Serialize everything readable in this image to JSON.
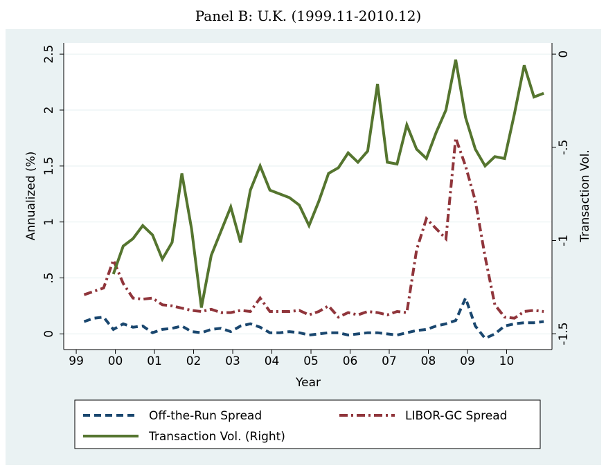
{
  "chart_data": {
    "type": "line",
    "title": "Panel B: U.K. (1999.11-2010.12)",
    "xlabel": "Year",
    "ylabel": "Annualized (%)",
    "y2label": "Transaction Vol.",
    "xlim": [
      1998.68,
      2011.16
    ],
    "xticks": [
      {
        "value": 1999,
        "label": "99"
      },
      {
        "value": 2000,
        "label": "00"
      },
      {
        "value": 2001,
        "label": "01"
      },
      {
        "value": 2002,
        "label": "02"
      },
      {
        "value": 2003,
        "label": "03"
      },
      {
        "value": 2004,
        "label": "04"
      },
      {
        "value": 2005,
        "label": "05"
      },
      {
        "value": 2006,
        "label": "06"
      },
      {
        "value": 2007,
        "label": "07"
      },
      {
        "value": 2008,
        "label": "08"
      },
      {
        "value": 2009,
        "label": "09"
      },
      {
        "value": 2010,
        "label": "10"
      }
    ],
    "ylim": [
      -0.14,
      2.6
    ],
    "yticks": [
      0,
      {
        "value": 0.5,
        "label": ".5"
      },
      1,
      1.5,
      2,
      2.5
    ],
    "y2lim": [
      -1.585,
      0.06
    ],
    "y2ticks": [
      -1.5,
      -1,
      {
        "value": -0.5,
        "label": "-.5"
      },
      0
    ],
    "grid": true,
    "x": [
      1999.2,
      1999.45,
      1999.7,
      1999.95,
      2000.2,
      2000.45,
      2000.7,
      2000.95,
      2001.2,
      2001.45,
      2001.7,
      2001.95,
      2002.2,
      2002.45,
      2002.7,
      2002.95,
      2003.2,
      2003.45,
      2003.7,
      2003.95,
      2004.2,
      2004.45,
      2004.7,
      2004.95,
      2005.2,
      2005.45,
      2005.7,
      2005.95,
      2006.2,
      2006.45,
      2006.7,
      2006.95,
      2007.2,
      2007.45,
      2007.7,
      2007.95,
      2008.2,
      2008.45,
      2008.7,
      2008.95,
      2009.2,
      2009.45,
      2009.7,
      2009.95,
      2010.2,
      2010.45,
      2010.7,
      2010.95
    ],
    "series": [
      {
        "name": "Off-the-Run Spread",
        "color": "#1a476f",
        "style": "dash",
        "values": [
          0.11,
          0.14,
          0.15,
          0.04,
          0.09,
          0.06,
          0.07,
          0.01,
          0.04,
          0.05,
          0.07,
          0.02,
          0.01,
          0.04,
          0.05,
          0.02,
          0.07,
          0.09,
          0.06,
          0.01,
          0.01,
          0.02,
          0.01,
          -0.01,
          0.0,
          0.01,
          0.01,
          -0.01,
          0.0,
          0.01,
          0.01,
          0.0,
          -0.01,
          0.01,
          0.03,
          0.04,
          0.07,
          0.09,
          0.12,
          0.32,
          0.07,
          -0.04,
          0.0,
          0.07,
          0.09,
          0.1,
          0.1,
          0.11
        ]
      },
      {
        "name": "LIBOR-GC Spread",
        "color": "#90353b",
        "style": "dashdot",
        "values": [
          0.35,
          0.38,
          0.41,
          0.66,
          0.45,
          0.32,
          0.31,
          0.32,
          0.26,
          0.25,
          0.23,
          0.21,
          0.2,
          0.22,
          0.19,
          0.19,
          0.21,
          0.2,
          0.32,
          0.2,
          0.2,
          0.2,
          0.21,
          0.17,
          0.2,
          0.25,
          0.15,
          0.19,
          0.17,
          0.2,
          0.19,
          0.17,
          0.2,
          0.19,
          0.75,
          1.03,
          0.94,
          0.85,
          1.75,
          1.5,
          1.19,
          0.69,
          0.26,
          0.15,
          0.14,
          0.2,
          0.21,
          0.2
        ]
      },
      {
        "name": "Transaction Vol. (Right)",
        "color": "#55752f",
        "style": "solid",
        "axis": "y2",
        "values": [
          null,
          null,
          null,
          -1.18,
          -1.03,
          -0.99,
          -0.92,
          -0.97,
          -1.1,
          -1.01,
          -0.64,
          -0.94,
          -1.36,
          -1.08,
          -0.95,
          -0.82,
          -1.01,
          -0.73,
          -0.6,
          -0.73,
          -0.75,
          -0.77,
          -0.81,
          -0.92,
          -0.79,
          -0.64,
          -0.61,
          -0.53,
          -0.58,
          -0.52,
          -0.16,
          -0.58,
          -0.59,
          -0.38,
          -0.51,
          -0.56,
          -0.42,
          -0.3,
          -0.03,
          -0.34,
          -0.51,
          -0.6,
          -0.55,
          -0.56,
          -0.32,
          -0.06,
          -0.23,
          -0.21
        ]
      }
    ]
  }
}
